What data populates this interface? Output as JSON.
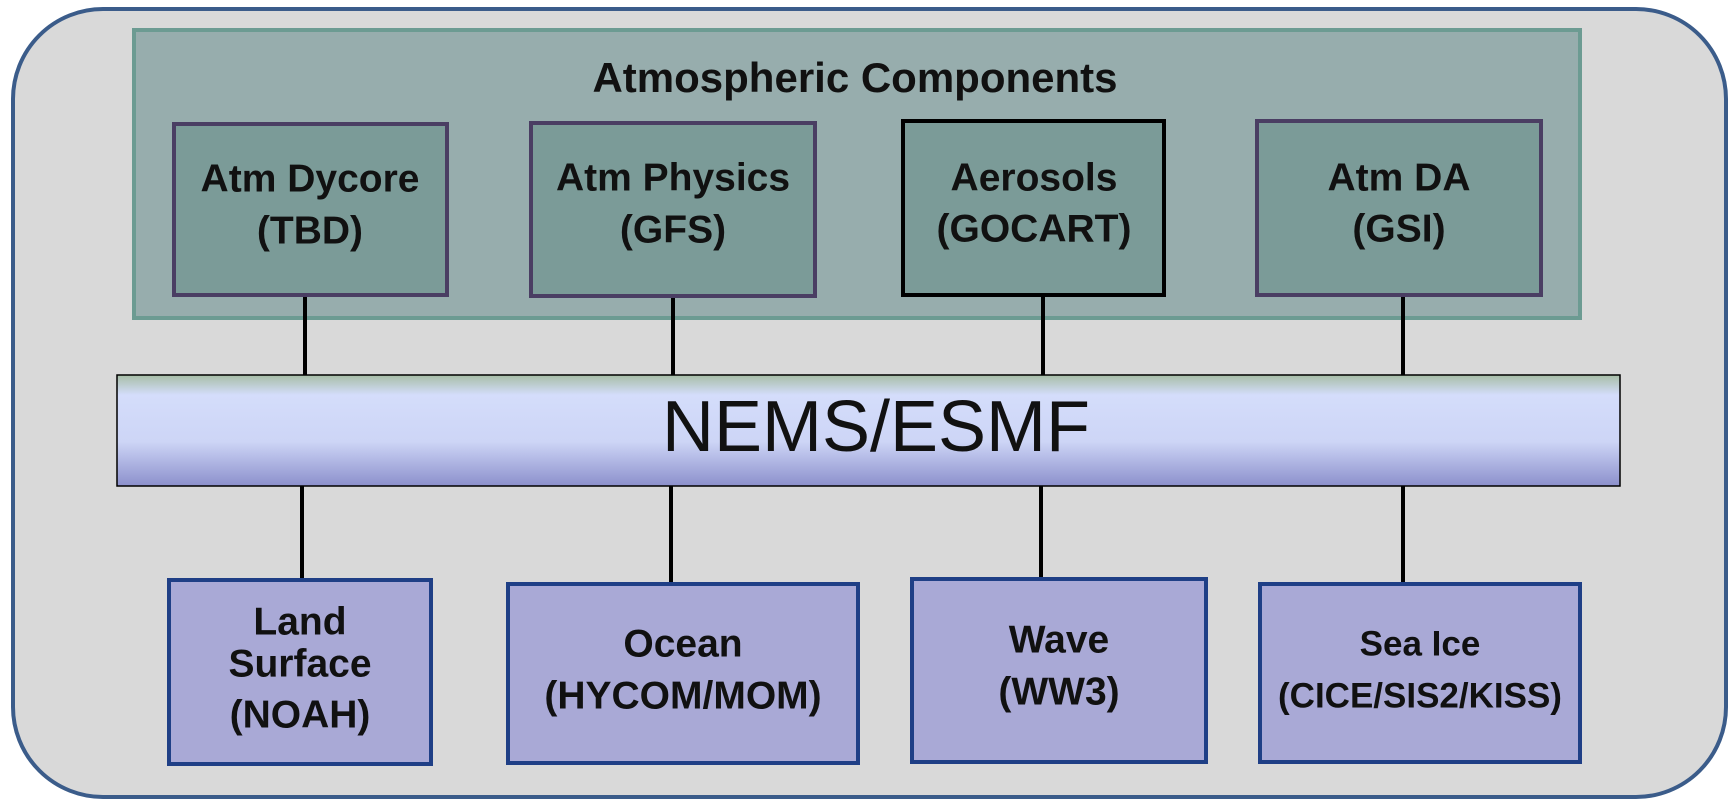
{
  "group": {
    "title": "Atmospheric Components"
  },
  "top_nodes": [
    {
      "lines": [
        "Atm Dycore",
        "(TBD)"
      ]
    },
    {
      "lines": [
        "Atm Physics",
        "(GFS)"
      ]
    },
    {
      "lines": [
        "Aerosols",
        "(GOCART)"
      ]
    },
    {
      "lines": [
        "Atm DA",
        "(GSI)"
      ]
    }
  ],
  "bus": {
    "label": "NEMS/ESMF"
  },
  "bottom_nodes": [
    {
      "lines": [
        "Land",
        "Surface",
        "(NOAH)"
      ]
    },
    {
      "lines": [
        "Ocean",
        "(HYCOM/MOM)"
      ]
    },
    {
      "lines": [
        "Wave",
        "(WW3)"
      ]
    },
    {
      "lines": [
        "Sea Ice",
        "(CICE/SIS2/KISS)"
      ]
    }
  ]
}
